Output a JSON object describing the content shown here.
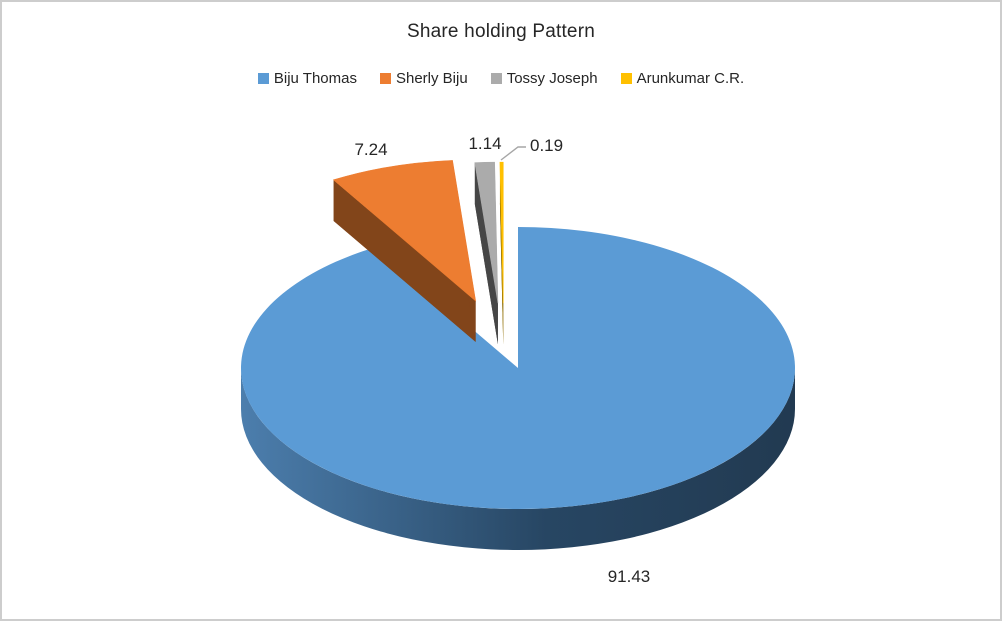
{
  "window": {
    "background": "#FFFFFF",
    "border_color": "#CDCDCD"
  },
  "chart_data": {
    "type": "pie",
    "style": "3d-exploded",
    "title": "Share holding Pattern",
    "legend_position": "top",
    "data_labels": "values",
    "text_color": "#262626",
    "leader_line_color": "#A6A6A6",
    "total": 100,
    "slices": [
      {
        "label": "Biju Thomas",
        "value": 91.43,
        "data_label": "91.43",
        "color": "#5B9BD5",
        "side_color": "#2B4C6C",
        "side_gradient": [
          "#4C7EAD",
          "#274663",
          "#223A51"
        ]
      },
      {
        "label": "Sherly Biju",
        "value": 7.24,
        "data_label": "7.24",
        "color": "#ED7D31",
        "side_color": "#82451A"
      },
      {
        "label": "Tossy Joseph",
        "value": 1.14,
        "data_label": "1.14",
        "color": "#ABABAB",
        "side_color": "#464646"
      },
      {
        "label": "Arunkumar C.R.",
        "value": 0.19,
        "data_label": "0.19",
        "color": "#FFC000",
        "side_color": "#8F6D00"
      }
    ]
  }
}
